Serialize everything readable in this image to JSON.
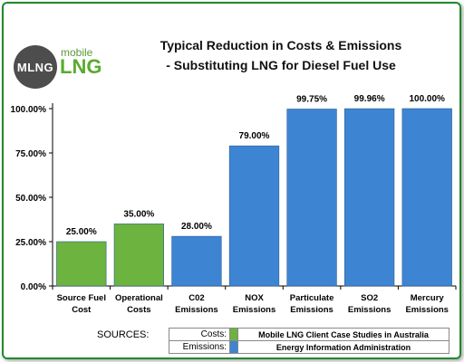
{
  "logo": {
    "circle_text": "MLNG",
    "mobile": "mobile",
    "lng": "LNG"
  },
  "title_line1": "Typical Reduction in Costs & Emissions",
  "title_line2": "- Substituting LNG for Diesel Fuel Use",
  "chart_data": {
    "type": "bar",
    "categories": [
      [
        "Source Fuel",
        "Cost"
      ],
      [
        "Operational",
        "Costs"
      ],
      [
        "C02",
        "Emissions"
      ],
      [
        "NOX",
        "Emissions"
      ],
      [
        "Particulate",
        "Emissions"
      ],
      [
        "SO2",
        "Emissions"
      ],
      [
        "Mercury",
        "Emissions"
      ]
    ],
    "values": [
      25.0,
      35.0,
      28.0,
      79.0,
      99.75,
      99.96,
      100.0
    ],
    "value_labels": [
      "25.00%",
      "35.00%",
      "28.00%",
      "79.00%",
      "99.75%",
      "99.96%",
      "100.00%"
    ],
    "colors": [
      "#6cb33f",
      "#6cb33f",
      "#3d85d2",
      "#3d85d2",
      "#3d85d2",
      "#3d85d2",
      "#3d85d2"
    ],
    "yticks": [
      0,
      25,
      50,
      75,
      100
    ],
    "ytick_labels": [
      "0.00%",
      "25.00%",
      "50.00%",
      "75.00%",
      "100.00%"
    ],
    "ylim": [
      0,
      100
    ],
    "grid": false
  },
  "sources": {
    "label": "SOURCES:",
    "rows": [
      {
        "key": "Costs:",
        "color": "#6cb33f",
        "value": "Mobile LNG Client Case Studies in Australia"
      },
      {
        "key": "Emissions:",
        "color": "#3d85d2",
        "value": "Energy Information Administration"
      }
    ]
  }
}
